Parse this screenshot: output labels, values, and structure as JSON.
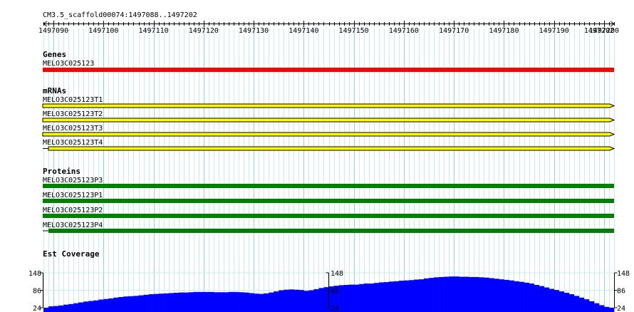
{
  "ruler": {
    "region_label": "CM3.5_scaffold00074:1497088..1497202",
    "start": 1497088,
    "end": 1497202,
    "ticks": [
      1497090,
      1497100,
      1497110,
      1497120,
      1497130,
      1497140,
      1497150,
      1497160,
      1497170,
      1497180,
      1497190,
      1497200
    ],
    "tick_labels": [
      "1497090",
      "1497100",
      "1497110",
      "1497120",
      "1497130",
      "1497140",
      "1497150",
      "1497160",
      "1497170",
      "1497180",
      "1497190",
      "1497200"
    ],
    "end_label": "1497202"
  },
  "tracks": {
    "genes": {
      "title": "Genes",
      "features": [
        {
          "name": "MELO3C025123",
          "color": "#ff0000"
        }
      ]
    },
    "mrnas": {
      "title": "mRNAs",
      "features": [
        {
          "name": "MELO3C025123T1",
          "color": "#ffff00",
          "left_overhang": false
        },
        {
          "name": "MELO3C025123T2",
          "color": "#ffff00",
          "left_overhang": false
        },
        {
          "name": "MELO3C025123T3",
          "color": "#ffff00",
          "left_overhang": false
        },
        {
          "name": "MELO3C025123T4",
          "color": "#ffff00",
          "left_overhang": true
        }
      ]
    },
    "proteins": {
      "title": "Proteins",
      "features": [
        {
          "name": "MELO3C025123P3",
          "color": "#008000",
          "left_overhang": false
        },
        {
          "name": "MELO3C025123P1",
          "color": "#008000",
          "left_overhang": false
        },
        {
          "name": "MELO3C025123P2",
          "color": "#008000",
          "left_overhang": false
        },
        {
          "name": "MELO3C025123P4",
          "color": "#008000",
          "left_overhang": true
        }
      ]
    },
    "coverage": {
      "title": "Est Coverage",
      "color": "#0000ff",
      "scale": {
        "max": 148,
        "mid": 86,
        "min": 24
      },
      "scale_labels": {
        "max": "148",
        "mid": "86",
        "min": "24"
      },
      "values": [
        24,
        29,
        30,
        32,
        35,
        37,
        40,
        43,
        46,
        48,
        50,
        53,
        55,
        57,
        60,
        62,
        64,
        65,
        66,
        68,
        70,
        72,
        73,
        74,
        75,
        76,
        77,
        78,
        78,
        79,
        80,
        80,
        80,
        80,
        79,
        79,
        79,
        80,
        80,
        79,
        78,
        76,
        74,
        73,
        75,
        78,
        82,
        86,
        88,
        89,
        88,
        87,
        84,
        86,
        90,
        94,
        97,
        100,
        102,
        104,
        105,
        106,
        106,
        108,
        110,
        110,
        112,
        114,
        115,
        117,
        118,
        120,
        121,
        122,
        124,
        125,
        128,
        130,
        132,
        133,
        134,
        135,
        135,
        134,
        134,
        133,
        133,
        132,
        131,
        129,
        127,
        125,
        123,
        121,
        118,
        116,
        113,
        110,
        105,
        101,
        96,
        91,
        87,
        82,
        77,
        72,
        66,
        60,
        54,
        47,
        40,
        33,
        27,
        24
      ]
    }
  }
}
